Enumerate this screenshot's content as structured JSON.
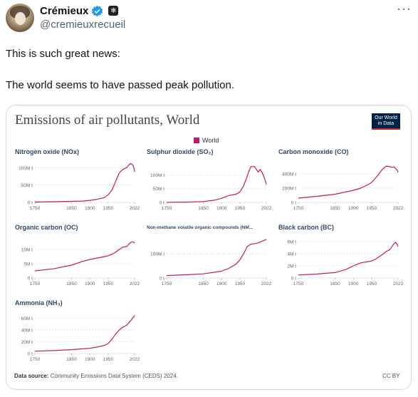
{
  "tweet": {
    "display_name": "Crémieux",
    "handle": "@cremieuxrecueil",
    "more_label": "···",
    "affiliate_badge": "❄",
    "text_lines": [
      "This is such great news:",
      "The world seems to have passed peak pollution."
    ]
  },
  "figure": {
    "title": "Emissions of air pollutants, World",
    "logo_line1": "Our World",
    "logo_line2": "in Data",
    "legend_label": "World",
    "series_color": "#c4186d",
    "source_label": "Data source:",
    "source_text": "Community Emissions Data System (CEDS) 2024.",
    "license": "CC BY"
  },
  "chart_data": [
    {
      "type": "line",
      "title": "Nitrogen oxide (NOx)",
      "x_ticks": [
        "1750",
        "1850",
        "1900",
        "1950",
        "2022"
      ],
      "y_ticks": [
        "0 t",
        "50M t",
        "100M t"
      ],
      "ylim": [
        0,
        115000000
      ],
      "xlim": [
        1750,
        2022
      ],
      "series": [
        {
          "name": "World",
          "x": [
            1750,
            1800,
            1850,
            1880,
            1900,
            1920,
            1940,
            1950,
            1960,
            1970,
            1980,
            1990,
            2000,
            2010,
            2015,
            2018,
            2020,
            2022
          ],
          "y": [
            1000000,
            2000000,
            3000000,
            4000000,
            6000000,
            9000000,
            14000000,
            22000000,
            35000000,
            60000000,
            85000000,
            95000000,
            100000000,
            112000000,
            110000000,
            106000000,
            100000000,
            88000000
          ]
        }
      ]
    },
    {
      "type": "line",
      "title": "Sulphur dioxide (SO₂)",
      "x_ticks": [
        "1750",
        "1850",
        "1900",
        "1950",
        "2022"
      ],
      "y_ticks": [
        "0 t",
        "50M t",
        "100M t"
      ],
      "ylim": [
        0,
        145000000
      ],
      "xlim": [
        1750,
        2022
      ],
      "series": [
        {
          "name": "World",
          "x": [
            1750,
            1800,
            1850,
            1880,
            1900,
            1920,
            1940,
            1950,
            1960,
            1970,
            1975,
            1980,
            1990,
            2000,
            2005,
            2010,
            2015,
            2020,
            2022
          ],
          "y": [
            500000,
            1000000,
            3000000,
            8000000,
            15000000,
            25000000,
            30000000,
            38000000,
            60000000,
            95000000,
            115000000,
            130000000,
            130000000,
            110000000,
            120000000,
            110000000,
            95000000,
            75000000,
            65000000
          ]
        }
      ]
    },
    {
      "type": "line",
      "title": "Carbon monoxide (CO)",
      "x_ticks": [
        "1750",
        "1850",
        "1900",
        "1950",
        "2022"
      ],
      "y_ticks": [
        "0 t",
        "200M t",
        "400M t"
      ],
      "ylim": [
        0,
        560000000
      ],
      "xlim": [
        1750,
        2022
      ],
      "series": [
        {
          "name": "World",
          "x": [
            1750,
            1800,
            1850,
            1900,
            1920,
            1940,
            1950,
            1960,
            1970,
            1980,
            1990,
            2000,
            2005,
            2010,
            2015,
            2020,
            2022
          ],
          "y": [
            60000000,
            85000000,
            115000000,
            170000000,
            200000000,
            250000000,
            280000000,
            340000000,
            400000000,
            470000000,
            510000000,
            500000000,
            490000000,
            500000000,
            480000000,
            450000000,
            420000000
          ]
        }
      ]
    },
    {
      "type": "line",
      "title": "Organic carbon (OC)",
      "x_ticks": [
        "1750",
        "1850",
        "1900",
        "1950",
        "2022"
      ],
      "y_ticks": [
        "0 t",
        "5M t",
        "10M t"
      ],
      "ylim": [
        0,
        14000000
      ],
      "xlim": [
        1750,
        2022
      ],
      "series": [
        {
          "name": "World",
          "x": [
            1750,
            1800,
            1850,
            1880,
            1900,
            1920,
            1940,
            1950,
            1960,
            1970,
            1980,
            1990,
            2000,
            2010,
            2015,
            2020,
            2022
          ],
          "y": [
            2500000,
            3200000,
            4500000,
            5800000,
            6500000,
            7000000,
            7500000,
            7800000,
            8300000,
            9000000,
            10000000,
            10800000,
            11000000,
            12300000,
            12700000,
            12500000,
            12200000
          ]
        }
      ]
    },
    {
      "type": "line",
      "title": "Non-methane volatile organic compounds (NM...",
      "x_ticks": [
        "1750",
        "1850",
        "1900",
        "1950",
        "2022"
      ],
      "y_ticks": [
        "0 t",
        "100M t"
      ],
      "ylim": [
        0,
        165000000
      ],
      "xlim": [
        1750,
        2022
      ],
      "series": [
        {
          "name": "World",
          "x": [
            1750,
            1800,
            1850,
            1900,
            1920,
            1940,
            1950,
            1960,
            1970,
            1980,
            1990,
            2000,
            2010,
            2015,
            2020,
            2022
          ],
          "y": [
            10000000,
            13000000,
            17000000,
            28000000,
            40000000,
            58000000,
            75000000,
            100000000,
            130000000,
            140000000,
            142000000,
            145000000,
            152000000,
            155000000,
            158000000,
            160000000
          ]
        }
      ]
    },
    {
      "type": "line",
      "title": "Black carbon (BC)",
      "x_ticks": [
        "1750",
        "1850",
        "1900",
        "1950",
        "2022"
      ],
      "y_ticks": [
        "0 t",
        "2M t",
        "4M t",
        "6M t"
      ],
      "ylim": [
        0,
        6600000
      ],
      "xlim": [
        1750,
        2022
      ],
      "series": [
        {
          "name": "World",
          "x": [
            1750,
            1800,
            1850,
            1880,
            1900,
            1920,
            1940,
            1950,
            1960,
            1970,
            1980,
            1990,
            2000,
            2010,
            2015,
            2020,
            2022
          ],
          "y": [
            500000,
            650000,
            900000,
            1400000,
            2000000,
            2500000,
            2700000,
            2800000,
            3100000,
            3500000,
            3900000,
            4400000,
            4700000,
            5600000,
            5900000,
            5500000,
            5200000
          ]
        }
      ]
    },
    {
      "type": "line",
      "title": "Ammonia (NH₃)",
      "x_ticks": [
        "1750",
        "1850",
        "1900",
        "1950",
        "2022"
      ],
      "y_ticks": [
        "0 t",
        "20M t",
        "40M t",
        "60M t"
      ],
      "ylim": [
        0,
        68000000
      ],
      "xlim": [
        1750,
        2022
      ],
      "series": [
        {
          "name": "World",
          "x": [
            1750,
            1800,
            1850,
            1900,
            1920,
            1940,
            1950,
            1960,
            1970,
            1980,
            1990,
            2000,
            2010,
            2015,
            2020,
            2022
          ],
          "y": [
            4000000,
            5000000,
            6500000,
            9000000,
            11000000,
            14000000,
            17000000,
            24000000,
            33000000,
            40000000,
            45000000,
            48000000,
            55000000,
            59000000,
            63000000,
            65000000
          ]
        }
      ]
    }
  ]
}
